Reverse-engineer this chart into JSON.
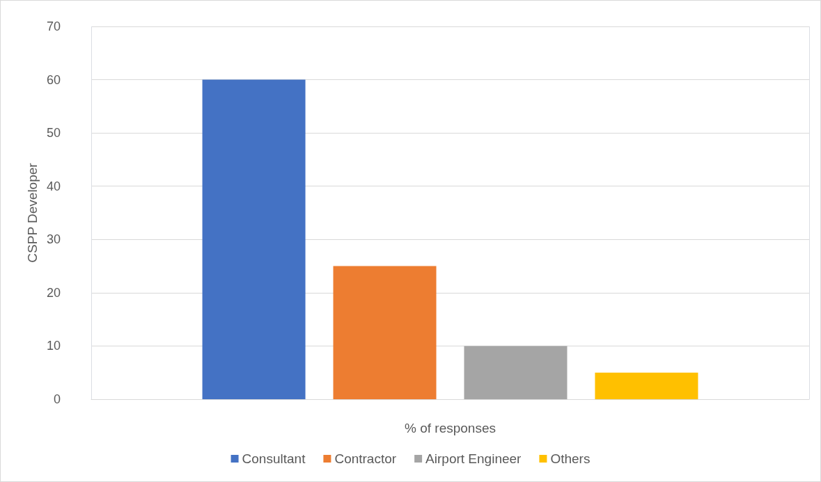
{
  "chart_data": {
    "type": "bar",
    "xlabel": "% of responses",
    "ylabel": "CSPP Developer",
    "categories": [
      null
    ],
    "series": [
      {
        "name": "Consultant",
        "color": "#4472c4",
        "values": [
          60
        ]
      },
      {
        "name": "Contractor",
        "color": "#ed7d31",
        "values": [
          25
        ]
      },
      {
        "name": "Airport Engineer",
        "color": "#a5a5a5",
        "values": [
          10
        ]
      },
      {
        "name": "Others",
        "color": "#ffc000",
        "values": [
          5
        ]
      }
    ],
    "ylim": [
      0,
      70
    ],
    "yticks": [
      0,
      10,
      20,
      30,
      40,
      50,
      60,
      70
    ],
    "grid": true,
    "legend": "bottom"
  }
}
